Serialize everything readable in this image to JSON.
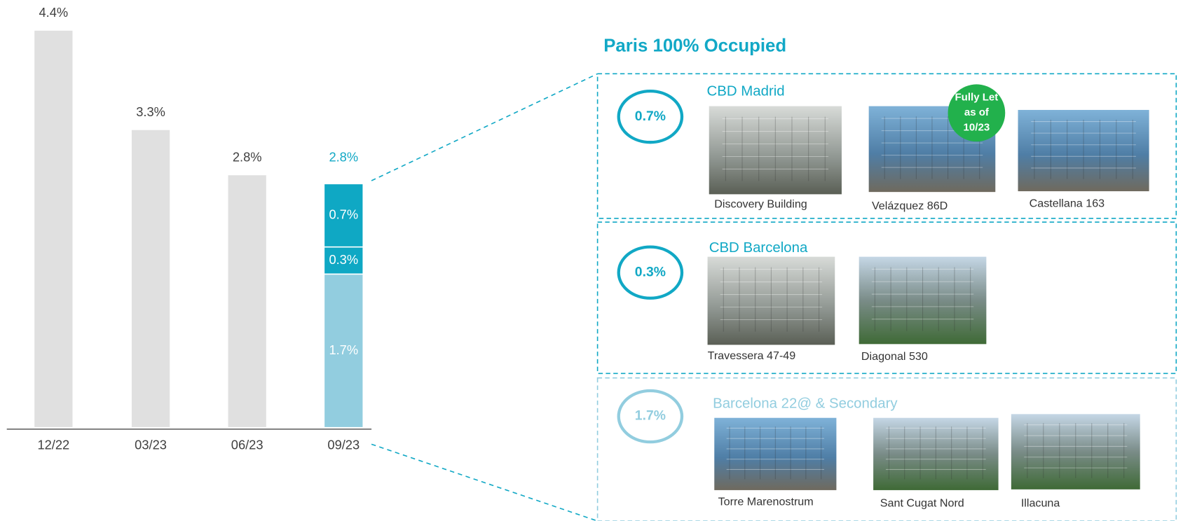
{
  "chart_data": {
    "type": "bar",
    "stacked": true,
    "categories": [
      "12/22",
      "03/23",
      "06/23",
      "09/23"
    ],
    "series": [
      {
        "color": "#e0e0e0",
        "values": [
          4.4,
          3.3,
          2.8,
          null
        ],
        "value_labels": [
          "4.4%",
          "3.3%",
          "2.8%",
          null
        ]
      },
      {
        "color": "#92cddf",
        "values": [
          null,
          null,
          null,
          1.7
        ],
        "value_labels": [
          null,
          null,
          null,
          "1.7%"
        ]
      },
      {
        "color": "#0fa8c4",
        "values": [
          null,
          null,
          null,
          0.3
        ],
        "value_labels": [
          null,
          null,
          null,
          "0.3%"
        ]
      },
      {
        "color": "#0fa8c4",
        "values": [
          null,
          null,
          null,
          0.7
        ],
        "value_labels": [
          null,
          null,
          null,
          "0.7%"
        ]
      }
    ],
    "stack_total": 2.8,
    "stack_total_label": "2.8%",
    "stack_total_color": "#11a8c5",
    "ylim": [
      0,
      4.4
    ]
  },
  "detail": {
    "title": "Paris 100% Occupied",
    "panels": [
      {
        "share": "0.7%",
        "title": "CBD Madrid",
        "buildings": [
          {
            "name": "Discovery Building"
          },
          {
            "name": "Velázquez 86D",
            "badge": [
              "Fully Let",
              "as of",
              "10/23"
            ]
          },
          {
            "name": "Castellana 163"
          }
        ]
      },
      {
        "share": "0.3%",
        "title": "CBD Barcelona",
        "buildings": [
          {
            "name": "Travessera 47-49"
          },
          {
            "name": "Diagonal 530"
          }
        ]
      },
      {
        "share": "1.7%",
        "title": "Barcelona 22@ & Secondary",
        "buildings": [
          {
            "name": "Torre Marenostrum"
          },
          {
            "name": "Sant Cugat Nord"
          },
          {
            "name": "Illacuna"
          }
        ]
      }
    ]
  }
}
